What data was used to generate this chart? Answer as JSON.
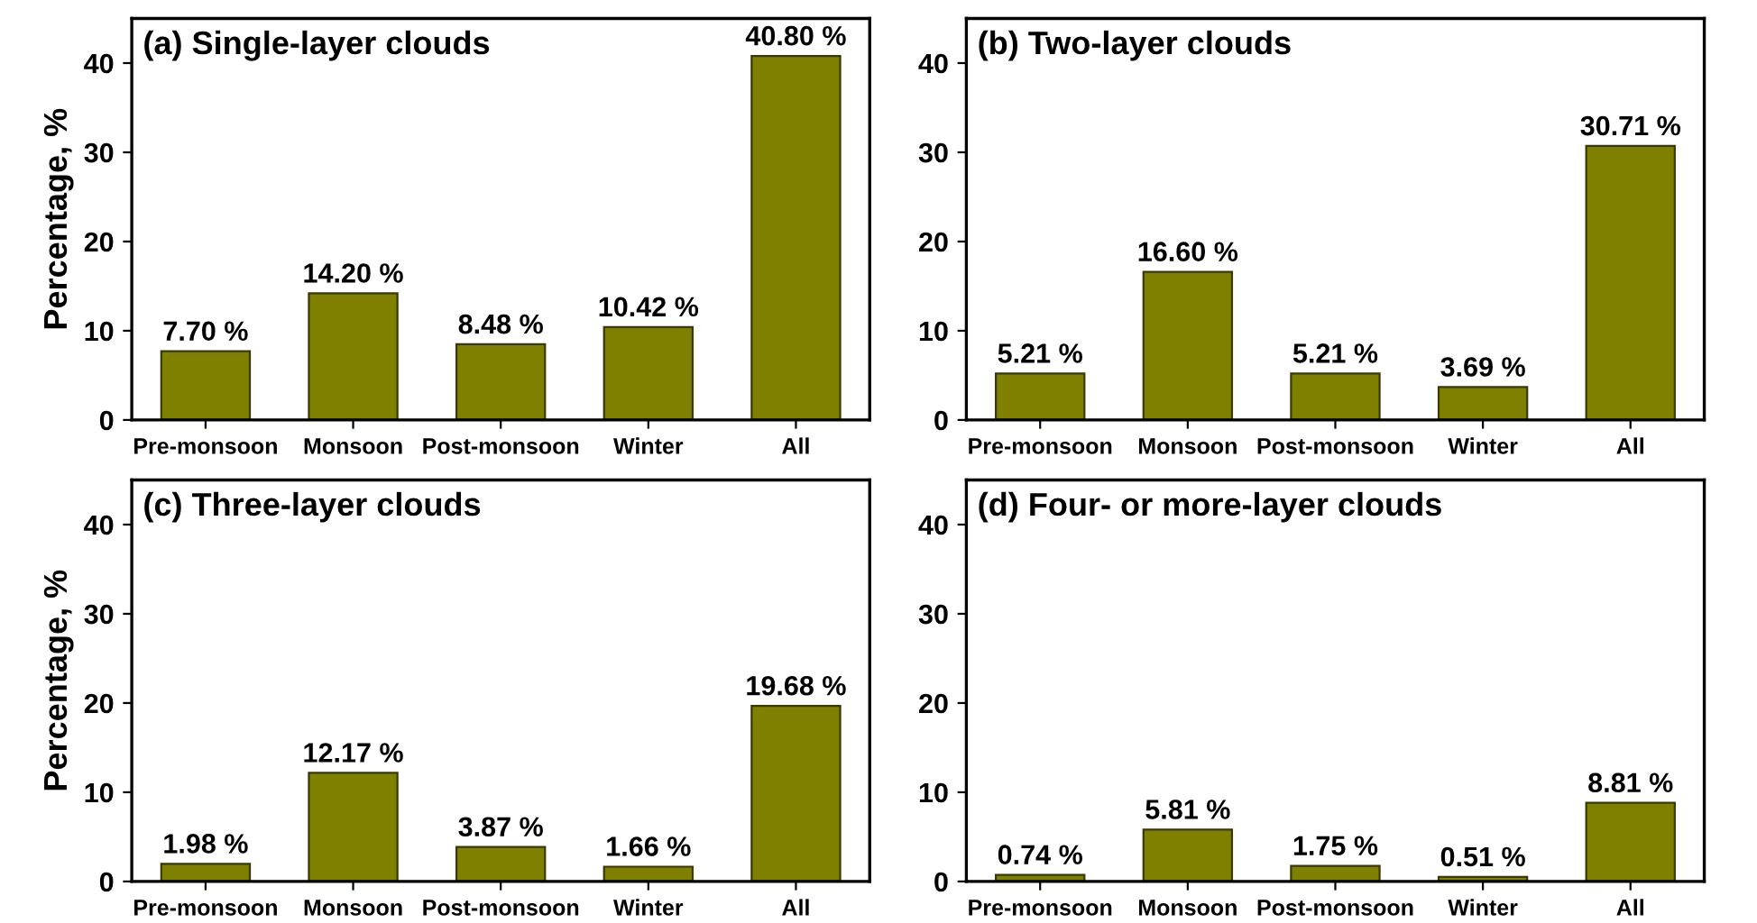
{
  "chart_data": [
    {
      "type": "bar",
      "title": "(a) Single-layer clouds",
      "ylabel": "Percentage, %",
      "categories": [
        "Pre-monsoon",
        "Monsoon",
        "Post-monsoon",
        "Winter",
        "All"
      ],
      "values": [
        7.7,
        14.2,
        8.48,
        10.42,
        40.8
      ],
      "value_labels": [
        "7.70 %",
        "14.20 %",
        "8.48 %",
        "10.42 %",
        "40.80 %"
      ],
      "color": "#808000",
      "ylim": [
        0,
        45
      ],
      "yticks": [
        0,
        10,
        20,
        30,
        40
      ],
      "grid": false
    },
    {
      "type": "bar",
      "title": "(b) Two-layer clouds",
      "categories": [
        "Pre-monsoon",
        "Monsoon",
        "Post-monsoon",
        "Winter",
        "All"
      ],
      "values": [
        5.21,
        16.6,
        5.21,
        3.69,
        30.71
      ],
      "value_labels": [
        "5.21 %",
        "16.60 %",
        "5.21 %",
        "3.69 %",
        "30.71 %"
      ],
      "color": "#808000",
      "ylim": [
        0,
        45
      ],
      "yticks": [
        0,
        10,
        20,
        30,
        40
      ],
      "grid": false
    },
    {
      "type": "bar",
      "title": "(c) Three-layer clouds",
      "ylabel": "Percentage, %",
      "categories": [
        "Pre-monsoon",
        "Monsoon",
        "Post-monsoon",
        "Winter",
        "All"
      ],
      "values": [
        1.98,
        12.17,
        3.87,
        1.66,
        19.68
      ],
      "value_labels": [
        "1.98 %",
        "12.17 %",
        "3.87 %",
        "1.66 %",
        "19.68 %"
      ],
      "color": "#808000",
      "ylim": [
        0,
        45
      ],
      "yticks": [
        0,
        10,
        20,
        30,
        40
      ],
      "grid": false
    },
    {
      "type": "bar",
      "title": "(d) Four- or more-layer clouds",
      "categories": [
        "Pre-monsoon",
        "Monsoon",
        "Post-monsoon",
        "Winter",
        "All"
      ],
      "values": [
        0.74,
        5.81,
        1.75,
        0.51,
        8.81
      ],
      "value_labels": [
        "0.74 %",
        "5.81 %",
        "1.75 %",
        "0.51 %",
        "8.81 %"
      ],
      "color": "#808000",
      "ylim": [
        0,
        45
      ],
      "yticks": [
        0,
        10,
        20,
        30,
        40
      ],
      "grid": false
    }
  ]
}
